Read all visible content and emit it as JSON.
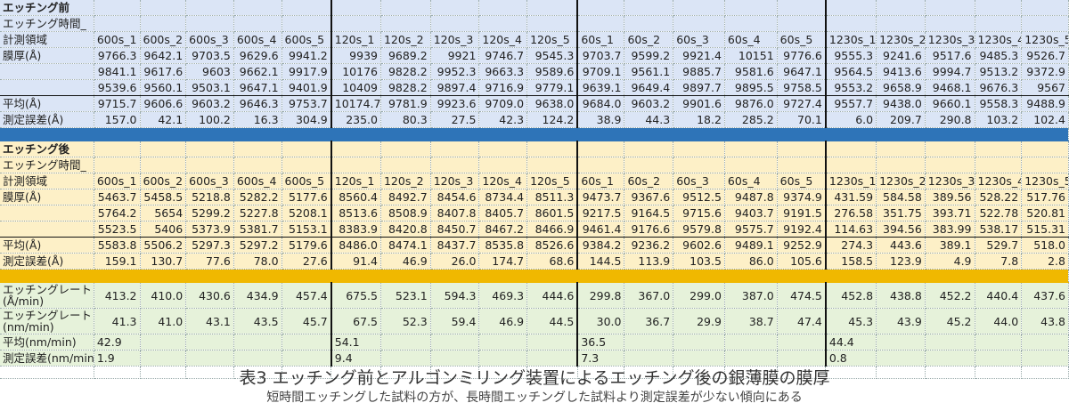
{
  "before": {
    "title": "エッチング前",
    "time_label": "エッチング時間_",
    "region_label": "計測領域",
    "thickness_label": "膜厚(Å)",
    "avg_label": "平均(Å)",
    "err_label": "測定誤差(Å)",
    "headers": [
      "600s_1",
      "600s_2",
      "600s_3",
      "600s_4",
      "600s_5",
      "120s_1",
      "120s_2",
      "120s_3",
      "120s_4",
      "120s_5",
      "60s_1",
      "60s_2",
      "60s_3",
      "60s_4",
      "60s_5",
      "1230s_1",
      "1230s_2",
      "1230s_3",
      "1230s_4",
      "1230s_5"
    ],
    "rows": [
      [
        "9766.3",
        "9642.1",
        "9703.5",
        "9629.6",
        "9941.2",
        "9939",
        "9689.2",
        "9921",
        "9746.7",
        "9545.3",
        "9703.7",
        "9599.2",
        "9921.4",
        "10151",
        "9776.6",
        "9555.3",
        "9241.6",
        "9517.6",
        "9485.3",
        "9526.7"
      ],
      [
        "9841.1",
        "9617.6",
        "9603",
        "9662.1",
        "9917.9",
        "10176",
        "9828.2",
        "9952.3",
        "9663.3",
        "9589.6",
        "9709.1",
        "9561.1",
        "9885.7",
        "9581.6",
        "9647.1",
        "9564.5",
        "9413.6",
        "9994.7",
        "9513.2",
        "9372.9"
      ],
      [
        "9539.6",
        "9560.1",
        "9503.1",
        "9647.1",
        "9401.9",
        "10409",
        "9828.2",
        "9897.4",
        "9716.9",
        "9779.1",
        "9639.1",
        "9649.4",
        "9897.7",
        "9895.5",
        "9758.5",
        "9553.2",
        "9658.9",
        "9468.1",
        "9676.3",
        "9567"
      ]
    ],
    "avg": [
      "9715.7",
      "9606.6",
      "9603.2",
      "9646.3",
      "9753.7",
      "10174.7",
      "9781.9",
      "9923.6",
      "9709.0",
      "9638.0",
      "9684.0",
      "9603.2",
      "9901.6",
      "9876.0",
      "9727.4",
      "9557.7",
      "9438.0",
      "9660.1",
      "9558.3",
      "9488.9"
    ],
    "err": [
      "157.0",
      "42.1",
      "100.2",
      "16.3",
      "304.9",
      "235.0",
      "80.3",
      "27.5",
      "42.3",
      "124.2",
      "38.9",
      "44.3",
      "18.2",
      "285.2",
      "70.1",
      "6.0",
      "209.7",
      "290.8",
      "103.2",
      "102.4"
    ]
  },
  "after": {
    "title": "エッチング後",
    "time_label": "エッチング時間_",
    "region_label": "計測領域",
    "thickness_label": "膜厚(Å)",
    "avg_label": "平均(Å)",
    "err_label": "測定誤差(Å)",
    "headers": [
      "600s_1",
      "600s_2",
      "600s_3",
      "600s_4",
      "600s_5",
      "120s_1",
      "120s_2",
      "120s_3",
      "120s_4",
      "120s_5",
      "60s_1",
      "60s_2",
      "60s_3",
      "60s_4",
      "60s_5",
      "1230s_1",
      "1230s_2",
      "1230s_3",
      "1230s_4",
      "1230s_5"
    ],
    "rows": [
      [
        "5463.7",
        "5458.5",
        "5218.8",
        "5282.2",
        "5177.6",
        "8560.4",
        "8492.7",
        "8454.6",
        "8734.4",
        "8511.3",
        "9473.7",
        "9367.6",
        "9512.5",
        "9487.8",
        "9374.9",
        "431.59",
        "584.58",
        "389.56",
        "528.22",
        "517.76"
      ],
      [
        "5764.2",
        "5654",
        "5299.2",
        "5227.8",
        "5208.1",
        "8513.6",
        "8508.9",
        "8407.8",
        "8405.7",
        "8601.5",
        "9217.5",
        "9164.5",
        "9715.6",
        "9403.7",
        "9191.5",
        "276.58",
        "351.75",
        "393.71",
        "522.78",
        "520.81"
      ],
      [
        "5523.5",
        "5406",
        "5373.9",
        "5381.7",
        "5153.1",
        "8383.9",
        "8420.8",
        "8450.7",
        "8467.2",
        "8466.9",
        "9461.4",
        "9176.6",
        "9579.8",
        "9575.7",
        "9192.4",
        "114.63",
        "394.56",
        "383.99",
        "538.17",
        "515.31"
      ]
    ],
    "avg": [
      "5583.8",
      "5506.2",
      "5297.3",
      "5297.2",
      "5179.6",
      "8486.0",
      "8474.1",
      "8437.7",
      "8535.8",
      "8526.6",
      "9384.2",
      "9236.2",
      "9602.6",
      "9489.1",
      "9252.9",
      "274.3",
      "443.6",
      "389.1",
      "529.7",
      "518.0"
    ],
    "err": [
      "159.1",
      "130.7",
      "77.6",
      "78.0",
      "27.6",
      "91.4",
      "46.9",
      "26.0",
      "174.7",
      "68.6",
      "144.5",
      "113.9",
      "103.5",
      "86.0",
      "105.6",
      "158.5",
      "123.9",
      "4.9",
      "7.8",
      "2.8"
    ]
  },
  "rate": {
    "rate_a_label_1": "エッチングレート",
    "rate_a_label_2": "(Å/min)",
    "rate_nm_label_1": "エッチングレート",
    "rate_nm_label_2": "(nm/min)",
    "avg_label": "平均(nm/min)",
    "err_label": "測定誤差(nm/min)",
    "rate_a": [
      "413.2",
      "410.0",
      "430.6",
      "434.9",
      "457.4",
      "675.5",
      "523.1",
      "594.3",
      "469.3",
      "444.6",
      "299.8",
      "367.0",
      "299.0",
      "387.0",
      "474.5",
      "452.8",
      "438.8",
      "452.2",
      "440.4",
      "437.6"
    ],
    "rate_nm": [
      "41.3",
      "41.0",
      "43.1",
      "43.5",
      "45.7",
      "67.5",
      "52.3",
      "59.4",
      "46.9",
      "44.5",
      "30.0",
      "36.7",
      "29.9",
      "38.7",
      "47.4",
      "45.3",
      "43.9",
      "45.2",
      "44.0",
      "43.8"
    ],
    "group_avg": [
      "42.9",
      "54.1",
      "36.5",
      "44.4"
    ],
    "group_err": [
      "1.9",
      "9.4",
      "7.3",
      "0.8"
    ]
  },
  "caption": {
    "title": "表3 エッチング前とアルゴンミリング装置によるエッチング後の銀薄膜の膜厚",
    "subtitle": "短時間エッチングした試料の方が、長時間エッチングした試料より測定誤差が少ない傾向にある"
  },
  "colors": {
    "before_bg": "#dbe5f6",
    "after_bg": "#fdf0c7",
    "rate_bg": "#e6f2da",
    "blue_bar": "#2e74b8",
    "orange_bar": "#f0b800"
  }
}
